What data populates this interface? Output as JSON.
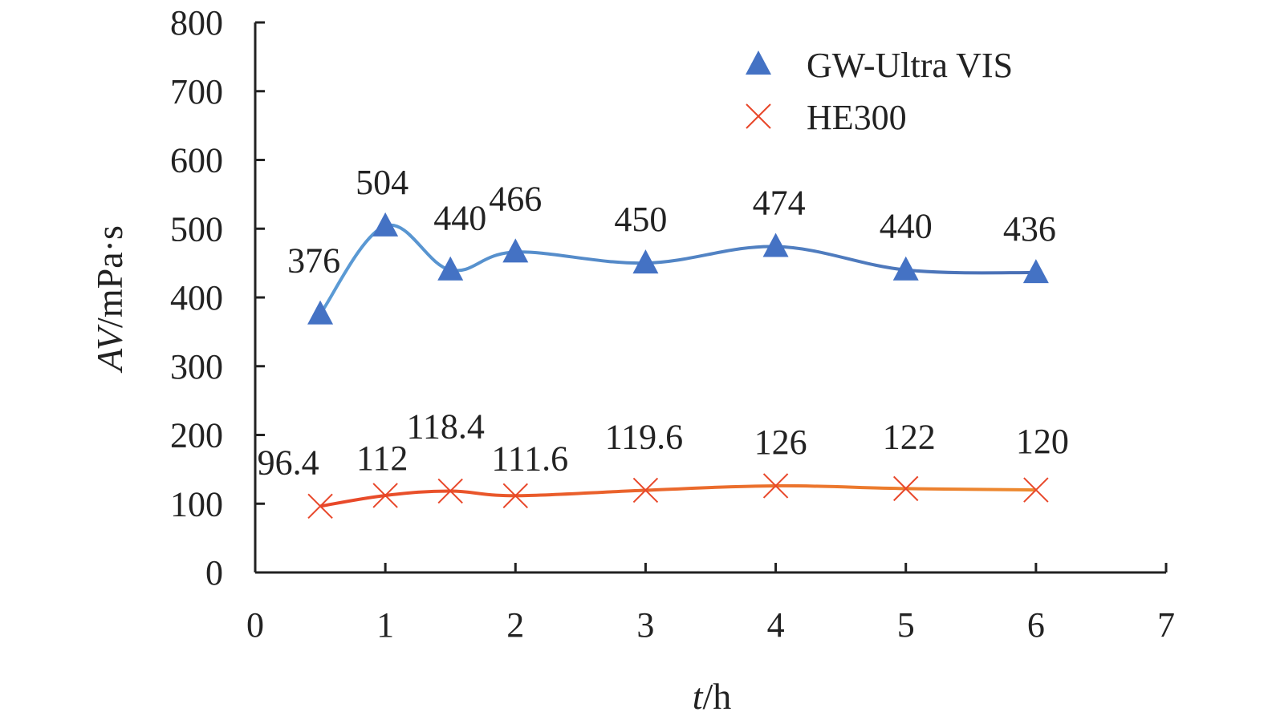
{
  "chart_data": {
    "type": "line",
    "smooth": true,
    "x_axis": {
      "title_var": "t",
      "title_unit": "/h",
      "min": 0,
      "max": 7,
      "ticks": [
        0,
        1,
        2,
        3,
        4,
        5,
        6,
        7
      ]
    },
    "y_axis": {
      "title_var": "AV",
      "title_unit": "/mPa·s",
      "min": 0,
      "max": 800,
      "ticks": [
        0,
        100,
        200,
        300,
        400,
        500,
        600,
        700,
        800
      ]
    },
    "grid": false,
    "legend_position": "top-right",
    "series": [
      {
        "name": "GW-Ultra VIS",
        "color": "#4472c4",
        "marker": "triangle",
        "x": [
          0.5,
          1,
          1.5,
          2,
          3,
          4,
          5,
          6
        ],
        "y": [
          376,
          504,
          440,
          466,
          450,
          474,
          440,
          436
        ],
        "labels": [
          "376",
          "504",
          "440",
          "466",
          "450",
          "474",
          "440",
          "436"
        ]
      },
      {
        "name": "HE300",
        "color": "#ed7d31",
        "marker": "x",
        "x": [
          0.5,
          1,
          1.5,
          2,
          3,
          4,
          5,
          6
        ],
        "y": [
          96.4,
          112,
          118.4,
          111.6,
          119.6,
          126,
          122,
          120
        ],
        "labels": [
          "96.4",
          "112",
          "118.4",
          "111.6",
          "119.6",
          "126",
          "122",
          "120"
        ]
      }
    ]
  }
}
